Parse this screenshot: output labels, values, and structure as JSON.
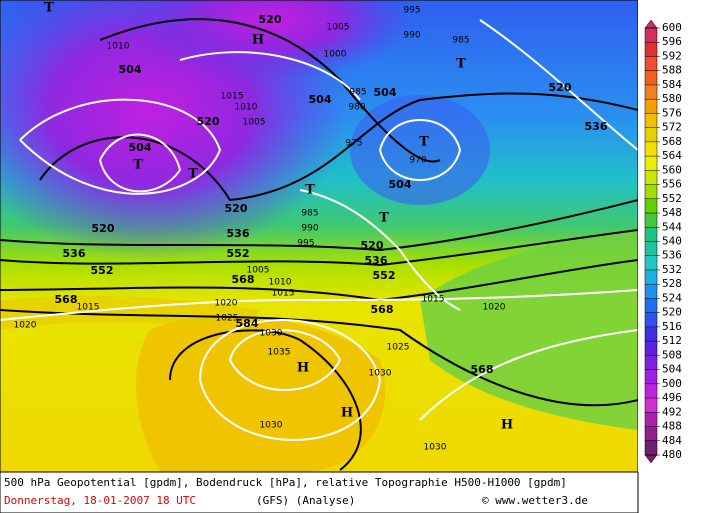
{
  "map": {
    "geopotential_labels": [
      504,
      504,
      504,
      504,
      504,
      520,
      520,
      520,
      520,
      520,
      520,
      536,
      536,
      536,
      536,
      552,
      552,
      552,
      568,
      568,
      568,
      568,
      584
    ],
    "pressure_labels": [
      995,
      990,
      985,
      1010,
      1005,
      1000,
      1015,
      1010,
      1005,
      985,
      980,
      975,
      970,
      985,
      990,
      995,
      1015,
      1020,
      1020,
      1025,
      1030,
      1035,
      1030,
      1025,
      1030,
      1030,
      1020,
      1015,
      1015,
      1010,
      1005
    ],
    "pressure_systems": [
      "T",
      "H",
      "T",
      "T",
      "T",
      "T",
      "T",
      "T",
      "H",
      "H",
      "H"
    ]
  },
  "colorbar": {
    "ticks": [
      480,
      484,
      488,
      492,
      496,
      500,
      504,
      508,
      512,
      516,
      520,
      524,
      528,
      532,
      536,
      540,
      544,
      548,
      552,
      556,
      560,
      564,
      568,
      572,
      576,
      580,
      584,
      588,
      592,
      596,
      600
    ],
    "colors": [
      "#702070",
      "#902090",
      "#b020b0",
      "#d030d0",
      "#c020e0",
      "#a020e0",
      "#8020e0",
      "#6020e0",
      "#4030e0",
      "#3050f0",
      "#2070f0",
      "#2090f0",
      "#20b0e0",
      "#20c8c8",
      "#20c0a0",
      "#20c080",
      "#40c840",
      "#60d000",
      "#a0e000",
      "#c8e800",
      "#e8f000",
      "#f0e000",
      "#e8d000",
      "#f0c000",
      "#f0a000",
      "#f08020",
      "#f06020",
      "#f05030",
      "#e03030",
      "#d03060",
      "#c03070"
    ]
  },
  "footer": {
    "description": "500 hPa Geopotential [gpdm], Bodendruck [hPa], relative Topographie H500-H1000 [gpdm]",
    "date": "Donnerstag, 18-01-2007  18 UTC",
    "model": "(GFS)  (Analyse)",
    "copyright": "© www.wetter3.de"
  }
}
